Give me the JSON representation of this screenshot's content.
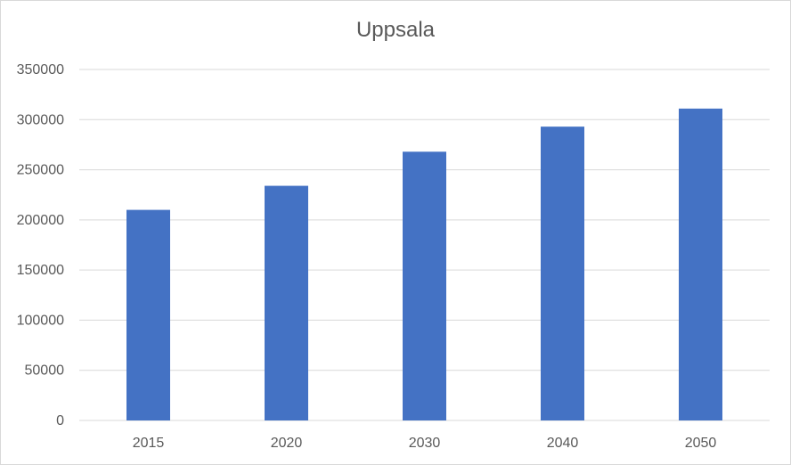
{
  "chart_data": {
    "type": "bar",
    "title": "Uppsala",
    "categories": [
      "2015",
      "2020",
      "2030",
      "2040",
      "2050"
    ],
    "values": [
      210000,
      234000,
      268000,
      293000,
      311000
    ],
    "ylim": [
      0,
      350000
    ],
    "yticks": [
      0,
      50000,
      100000,
      150000,
      200000,
      250000,
      300000,
      350000
    ],
    "ytick_labels": [
      "0",
      "50000",
      "100000",
      "150000",
      "200000",
      "250000",
      "300000",
      "350000"
    ],
    "grid": true,
    "legend": "none",
    "colors": {
      "bar": "#4472c4",
      "grid": "#d9d9d9",
      "text": "#595959"
    }
  }
}
